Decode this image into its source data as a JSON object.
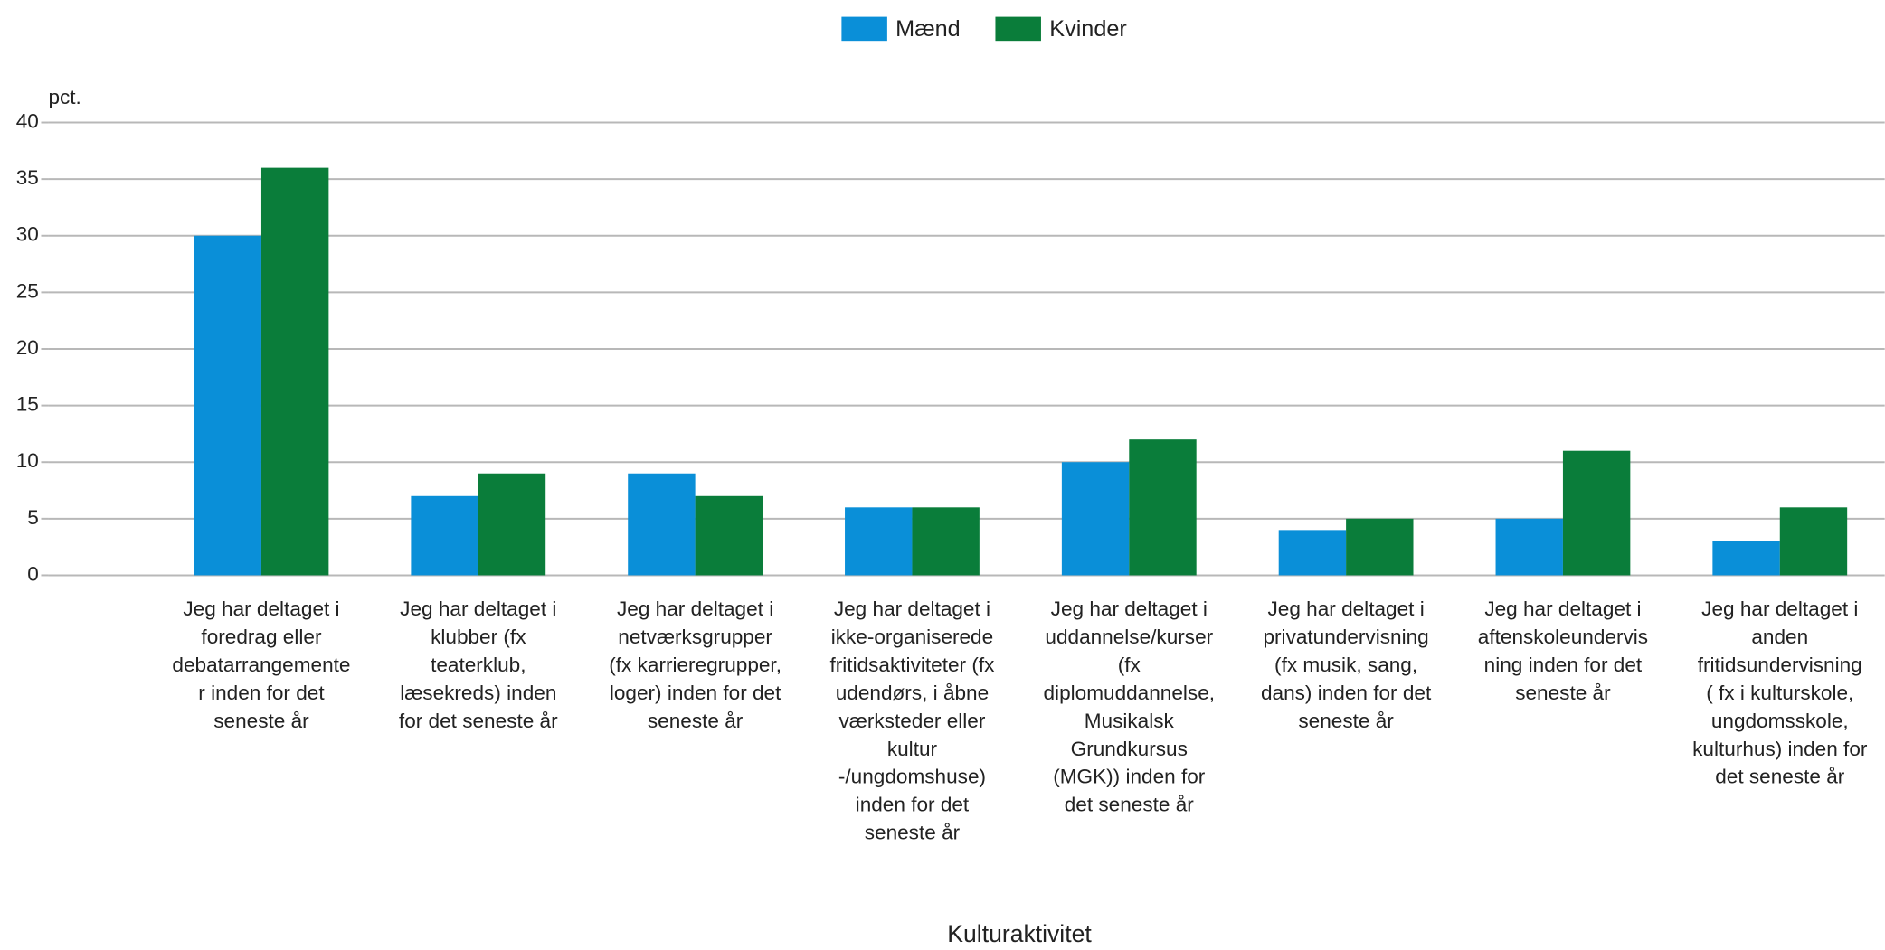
{
  "chart_data": {
    "type": "bar",
    "x_label": "Kulturaktivitet",
    "y_label": "pct.",
    "categories": [
      "Jeg har deltaget i\nforedrag eller\ndebatarrangemente\nr inden for det\nseneste år",
      "Jeg har deltaget i\nklubber (fx\nteaterklub,\nlæsekreds) inden\nfor det seneste år",
      "Jeg har deltaget i\nnetværksgrupper\n(fx karrieregrupper,\nloger) inden for det\nseneste år",
      "Jeg har deltaget i\nikke-organiserede\nfritidsaktiviteter (fx\nudendørs, i åbne\nværksteder eller\nkultur\n-/ungdomshuse)\ninden for det\nseneste  år",
      "Jeg har deltaget i\nuddannelse/kurser\n(fx\ndiplomuddannelse,\nMusikalsk\nGrundkursus\n(MGK)) inden for\ndet seneste år",
      "Jeg har deltaget i\nprivatundervisning\n(fx musik, sang,\ndans) inden for det\nseneste år",
      "Jeg har deltaget i\naftenskoleundervis\nning inden for det\nseneste år",
      "Jeg har deltaget i\nanden\nfritidsundervisning\n( fx i kulturskole,\nungdomsskole,\nkulturhus) inden for\ndet seneste år"
    ],
    "series": [
      {
        "name": "Mænd",
        "color": "#0a8fd8",
        "values": [
          30,
          7,
          9,
          6,
          10,
          4,
          5,
          3
        ]
      },
      {
        "name": "Kvinder",
        "color": "#0a7d3a",
        "values": [
          36,
          9,
          7,
          6,
          12,
          5,
          11,
          6
        ]
      }
    ],
    "ylim": [
      0,
      40
    ],
    "yticks": [
      0,
      5,
      10,
      15,
      20,
      25,
      30,
      35,
      40
    ],
    "grid": true,
    "legend": "top"
  }
}
